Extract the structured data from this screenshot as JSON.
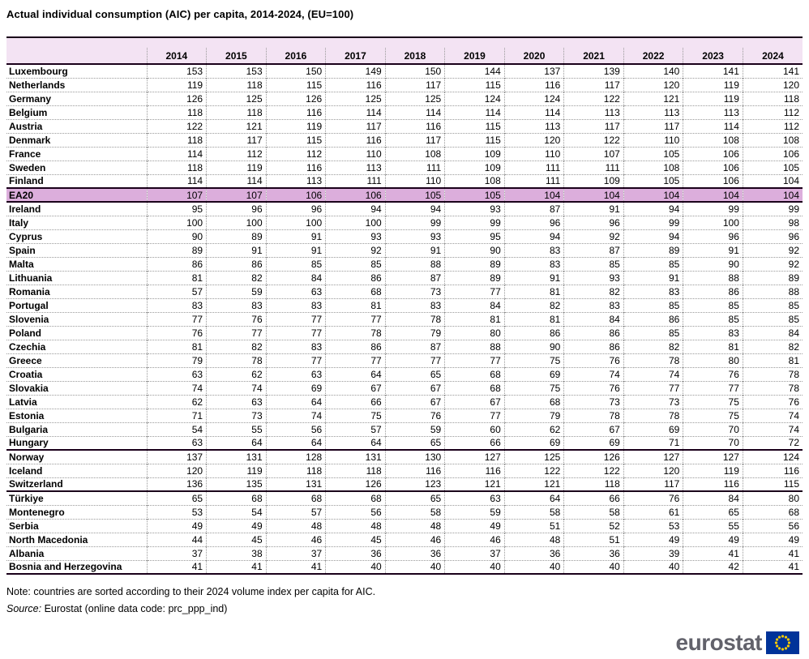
{
  "title": "Actual individual consumption (AIC) per capita, 2014-2024, (EU=100)",
  "note": "Note: countries are sorted according to their 2024 volume index per capita for AIC.",
  "source": {
    "label": "Source:",
    "text": " Eurostat (online data code: prc_ppp_ind)"
  },
  "logo": {
    "text": "eurostat"
  },
  "colors": {
    "header_bg": "#f3e3f3",
    "highlight_bg": "#dcaedc",
    "line": "#1a001a",
    "logo_gray": "#62626b",
    "flag_blue": "#003399",
    "star_yellow": "#ffcc00"
  },
  "chart_data": {
    "type": "table",
    "title": "Actual individual consumption (AIC) per capita, 2014-2024, (EU=100)",
    "columns": [
      "2014",
      "2015",
      "2016",
      "2017",
      "2018",
      "2019",
      "2020",
      "2021",
      "2022",
      "2023",
      "2024"
    ],
    "rows": [
      {
        "name": "Luxembourg",
        "values": [
          153,
          153,
          150,
          149,
          150,
          144,
          137,
          139,
          140,
          141,
          141
        ]
      },
      {
        "name": "Netherlands",
        "values": [
          119,
          118,
          115,
          116,
          117,
          115,
          116,
          117,
          120,
          119,
          120
        ]
      },
      {
        "name": "Germany",
        "values": [
          126,
          125,
          126,
          125,
          125,
          124,
          124,
          122,
          121,
          119,
          118
        ]
      },
      {
        "name": "Belgium",
        "values": [
          118,
          118,
          116,
          114,
          114,
          114,
          114,
          113,
          113,
          113,
          112
        ]
      },
      {
        "name": "Austria",
        "values": [
          122,
          121,
          119,
          117,
          116,
          115,
          113,
          117,
          117,
          114,
          112
        ]
      },
      {
        "name": "Denmark",
        "values": [
          118,
          117,
          115,
          116,
          117,
          115,
          120,
          122,
          110,
          108,
          108
        ]
      },
      {
        "name": "France",
        "values": [
          114,
          112,
          112,
          110,
          108,
          109,
          110,
          107,
          105,
          106,
          106
        ]
      },
      {
        "name": "Sweden",
        "values": [
          118,
          119,
          116,
          113,
          111,
          109,
          111,
          111,
          108,
          106,
          105
        ]
      },
      {
        "name": "Finland",
        "values": [
          114,
          114,
          113,
          111,
          110,
          108,
          111,
          109,
          105,
          106,
          104
        ]
      },
      {
        "name": "EA20",
        "values": [
          107,
          107,
          106,
          106,
          105,
          105,
          104,
          104,
          104,
          104,
          104
        ],
        "highlight": true
      },
      {
        "name": "Ireland",
        "values": [
          95,
          96,
          96,
          94,
          94,
          93,
          87,
          91,
          94,
          99,
          99
        ]
      },
      {
        "name": "Italy",
        "values": [
          100,
          100,
          100,
          100,
          99,
          99,
          96,
          96,
          99,
          100,
          98
        ]
      },
      {
        "name": "Cyprus",
        "values": [
          90,
          89,
          91,
          93,
          93,
          95,
          94,
          92,
          94,
          96,
          96
        ]
      },
      {
        "name": "Spain",
        "values": [
          89,
          91,
          91,
          92,
          91,
          90,
          83,
          87,
          89,
          91,
          92
        ]
      },
      {
        "name": "Malta",
        "values": [
          86,
          86,
          85,
          85,
          88,
          89,
          83,
          85,
          85,
          90,
          92
        ]
      },
      {
        "name": "Lithuania",
        "values": [
          81,
          82,
          84,
          86,
          87,
          89,
          91,
          93,
          91,
          88,
          89
        ]
      },
      {
        "name": "Romania",
        "values": [
          57,
          59,
          63,
          68,
          73,
          77,
          81,
          82,
          83,
          86,
          88
        ]
      },
      {
        "name": "Portugal",
        "values": [
          83,
          83,
          83,
          81,
          83,
          84,
          82,
          83,
          85,
          85,
          85
        ]
      },
      {
        "name": "Slovenia",
        "values": [
          77,
          76,
          77,
          77,
          78,
          81,
          81,
          84,
          86,
          85,
          85
        ]
      },
      {
        "name": "Poland",
        "values": [
          76,
          77,
          77,
          78,
          79,
          80,
          86,
          86,
          85,
          83,
          84
        ]
      },
      {
        "name": "Czechia",
        "values": [
          81,
          82,
          83,
          86,
          87,
          88,
          90,
          86,
          82,
          81,
          82
        ]
      },
      {
        "name": "Greece",
        "values": [
          79,
          78,
          77,
          77,
          77,
          77,
          75,
          76,
          78,
          80,
          81
        ]
      },
      {
        "name": "Croatia",
        "values": [
          63,
          62,
          63,
          64,
          65,
          68,
          69,
          74,
          74,
          76,
          78
        ]
      },
      {
        "name": "Slovakia",
        "values": [
          74,
          74,
          69,
          67,
          67,
          68,
          75,
          76,
          77,
          77,
          78
        ]
      },
      {
        "name": "Latvia",
        "values": [
          62,
          63,
          64,
          66,
          67,
          67,
          68,
          73,
          73,
          75,
          76
        ]
      },
      {
        "name": "Estonia",
        "values": [
          71,
          73,
          74,
          75,
          76,
          77,
          79,
          78,
          78,
          75,
          74
        ]
      },
      {
        "name": "Bulgaria",
        "values": [
          54,
          55,
          56,
          57,
          59,
          60,
          62,
          67,
          69,
          70,
          74
        ]
      },
      {
        "name": "Hungary",
        "values": [
          63,
          64,
          64,
          64,
          65,
          66,
          69,
          69,
          71,
          70,
          72
        ],
        "sep_after": true
      },
      {
        "name": "Norway",
        "values": [
          137,
          131,
          128,
          131,
          130,
          127,
          125,
          126,
          127,
          127,
          124
        ]
      },
      {
        "name": "Iceland",
        "values": [
          120,
          119,
          118,
          118,
          116,
          116,
          122,
          122,
          120,
          119,
          116
        ]
      },
      {
        "name": "Switzerland",
        "values": [
          136,
          135,
          131,
          126,
          123,
          121,
          121,
          118,
          117,
          116,
          115
        ],
        "sep_after": true
      },
      {
        "name": "Türkiye",
        "values": [
          65,
          68,
          68,
          68,
          65,
          63,
          64,
          66,
          76,
          84,
          80
        ]
      },
      {
        "name": "Montenegro",
        "values": [
          53,
          54,
          57,
          56,
          58,
          59,
          58,
          58,
          61,
          65,
          68
        ]
      },
      {
        "name": "Serbia",
        "values": [
          49,
          49,
          48,
          48,
          48,
          49,
          51,
          52,
          53,
          55,
          56
        ]
      },
      {
        "name": "North Macedonia",
        "values": [
          44,
          45,
          46,
          45,
          46,
          46,
          48,
          51,
          49,
          49,
          49
        ]
      },
      {
        "name": "Albania",
        "values": [
          37,
          38,
          37,
          36,
          36,
          37,
          36,
          36,
          39,
          41,
          41
        ]
      },
      {
        "name": "Bosnia and Herzegovina",
        "values": [
          41,
          41,
          41,
          40,
          40,
          40,
          40,
          40,
          40,
          42,
          41
        ]
      }
    ]
  }
}
